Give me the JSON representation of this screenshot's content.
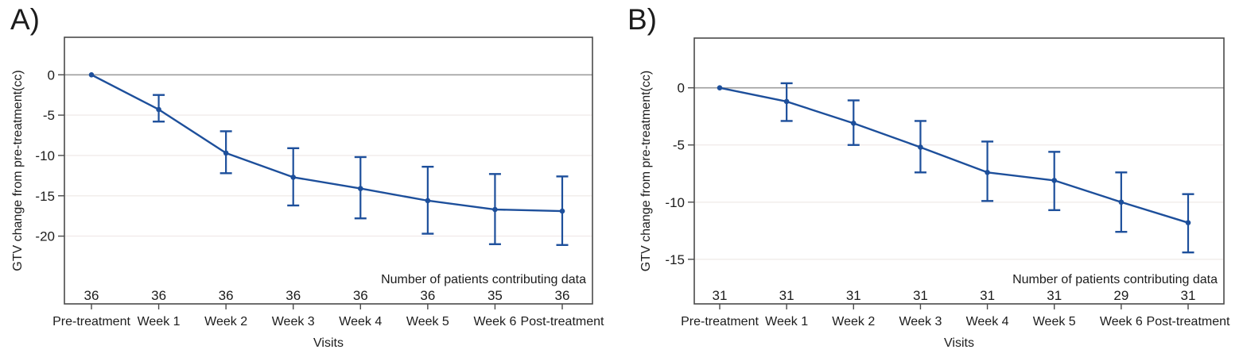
{
  "figure": {
    "background": "#ffffff"
  },
  "colors": {
    "series_line": "#1d4f9b",
    "marker": "#1d4f9b",
    "error_bar": "#1d4f9b",
    "zero_line": "#9e9e9e",
    "gridline": "#f1ebea",
    "plot_border": "#4a4a4a",
    "tick": "#4a4a4a",
    "text": "#1c1c1c"
  },
  "chart_data": [
    {
      "type": "line",
      "panel_label": "A)",
      "title": "",
      "xlabel": "Visits",
      "ylabel": "GTV change from pre-treatment(cc)",
      "annotation": "Number of patients contributing data",
      "categories": [
        "Pre-treatment",
        "Week 1",
        "Week 2",
        "Week 3",
        "Week 4",
        "Week 5",
        "Week 6",
        "Post-treatment"
      ],
      "series": [
        {
          "values": [
            0,
            -4.3,
            -9.7,
            -12.7,
            -14.1,
            -15.6,
            -16.7,
            -16.9
          ],
          "ci_upper": [
            null,
            -2.5,
            -7.0,
            -9.1,
            -10.2,
            -11.4,
            -12.3,
            -12.6
          ],
          "ci_lower": [
            null,
            -5.8,
            -12.2,
            -16.2,
            -17.8,
            -19.7,
            -21.0,
            -21.1
          ]
        }
      ],
      "patients_contributing": [
        36,
        36,
        36,
        36,
        36,
        36,
        35,
        36
      ],
      "yticks": [
        0,
        -5,
        -10,
        -15,
        -20
      ],
      "ylim": [
        -28.4,
        4.65
      ],
      "zero_reference_line": 0,
      "grid": true,
      "legend": "none"
    },
    {
      "type": "line",
      "panel_label": "B)",
      "title": "",
      "xlabel": "Visits",
      "ylabel": "GTV change from pre-treatment(cc)",
      "annotation": "Number of patients contributing data",
      "categories": [
        "Pre-treatment",
        "Week 1",
        "Week 2",
        "Week 3",
        "Week 4",
        "Week 5",
        "Week 6",
        "Post-treatment"
      ],
      "series": [
        {
          "values": [
            0,
            -1.2,
            -3.1,
            -5.2,
            -7.4,
            -8.1,
            -10.0,
            -11.8
          ],
          "ci_upper": [
            null,
            0.4,
            -1.1,
            -2.9,
            -4.7,
            -5.6,
            -7.4,
            -9.3
          ],
          "ci_lower": [
            null,
            -2.9,
            -5.0,
            -7.4,
            -9.9,
            -10.7,
            -12.6,
            -14.4
          ]
        }
      ],
      "patients_contributing": [
        31,
        31,
        31,
        31,
        31,
        31,
        29,
        31
      ],
      "yticks": [
        0,
        -5,
        -10,
        -15
      ],
      "ylim": [
        -18.9,
        4.35
      ],
      "zero_reference_line": 0,
      "grid": true,
      "legend": "none"
    }
  ]
}
